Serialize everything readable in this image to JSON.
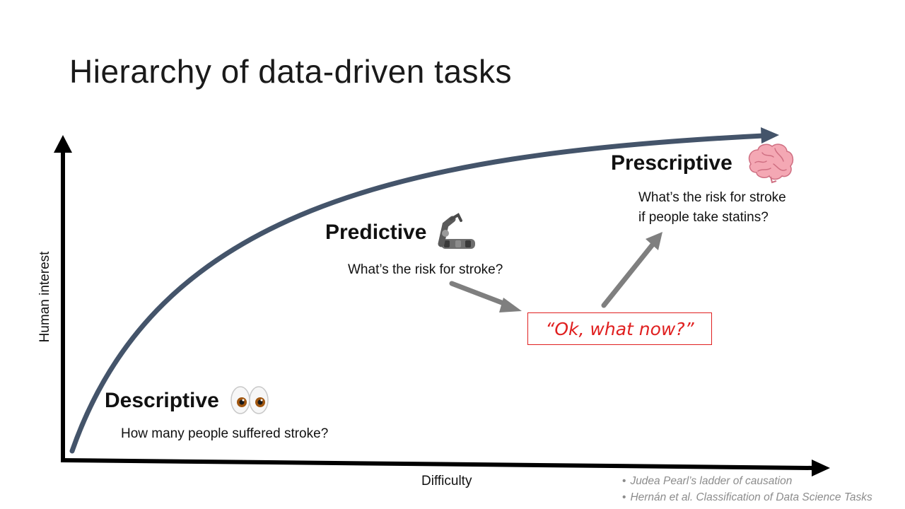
{
  "title": "Hierarchy of data-driven tasks",
  "axes": {
    "y_label": "Human interest",
    "x_label": "Difficulty"
  },
  "tiers": [
    {
      "label": "Descriptive",
      "icon": "eyes-icon",
      "question": "How many people suffered stroke?"
    },
    {
      "label": "Predictive",
      "icon": "mechanical-arm-icon",
      "question": "What’s the risk for stroke?"
    },
    {
      "label": "Prescriptive",
      "icon": "brain-icon",
      "question_line1": "What’s the risk for stroke",
      "question_line2": "if people take statins?"
    }
  ],
  "callout": "“Ok, what now?”",
  "references": [
    "Judea Pearl’s ladder of causation",
    "Hernán et al. Classification of Data Science Tasks"
  ],
  "colors": {
    "curve": "#44546a",
    "axes": "#000000",
    "flow_arrows": "#7f7f7f",
    "callout": "#e02020",
    "references": "#8c8c8c"
  }
}
